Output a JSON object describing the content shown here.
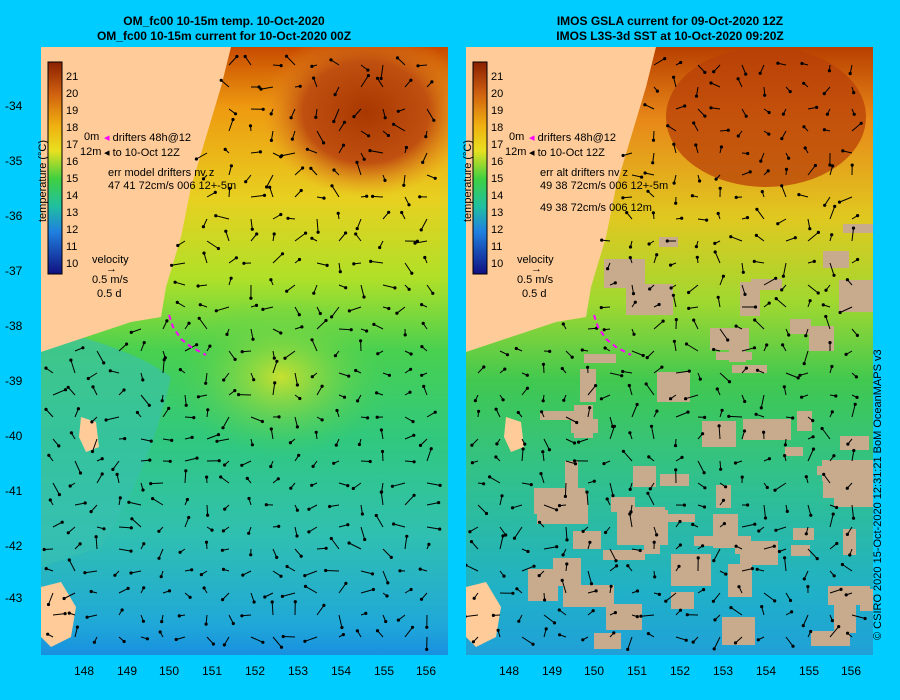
{
  "colors": {
    "background": "#00ccff",
    "land": "#ffcc99",
    "missing": "#c8aa8c",
    "drifter": "#ff00ff"
  },
  "panels": [
    {
      "id": "left",
      "title_line1": "OM_fc00 10-15m temp. 10-Oct-2020",
      "title_line2": "OM_fc00 10-15m current for 10-Oct-2020 00Z",
      "drifters_text": "drifters 48h@12",
      "drifters_text2": "to 10-Oct 12Z",
      "err_line1": "err model drifters nv z",
      "err_line2": "47 41 72cm/s 006 12+-5m",
      "err_line3": "",
      "depth_top": "0m",
      "depth_bottom": "12m",
      "has_missing": false
    },
    {
      "id": "right",
      "title_line1": "IMOS GSLA current for 09-Oct-2020 12Z",
      "title_line2": "IMOS L3S-3d SST at 10-Oct-2020 09:20Z",
      "drifters_text": "drifters 48h@12",
      "drifters_text2": "to 10-Oct 12Z",
      "err_line1": "err alt drifters nv z",
      "err_line2": "49 38 72cm/s 006 12+-5m",
      "err_line3": "49 38 72cm/s 006 12m",
      "depth_top": "0m",
      "depth_bottom": "12m",
      "has_missing": true
    }
  ],
  "velocity": {
    "label": "velocity",
    "speed": "0.5 m/s",
    "time": "0.5 d"
  },
  "colorbar": {
    "label": "temperature (°C)",
    "ticks": [
      "21",
      "20",
      "19",
      "18",
      "17",
      "16",
      "15",
      "14",
      "13",
      "12",
      "11",
      "10"
    ]
  },
  "lat_labels": [
    "-34",
    "-35",
    "-36",
    "-37",
    "-38",
    "-39",
    "-40",
    "-41",
    "-42",
    "-43"
  ],
  "lon_labels": [
    "148",
    "149",
    "150",
    "151",
    "152",
    "153",
    "154",
    "155",
    "156"
  ],
  "credit": "© CSIRO 2020   15-Oct-2020 12:31:21 BoM OceanMAPS v3"
}
